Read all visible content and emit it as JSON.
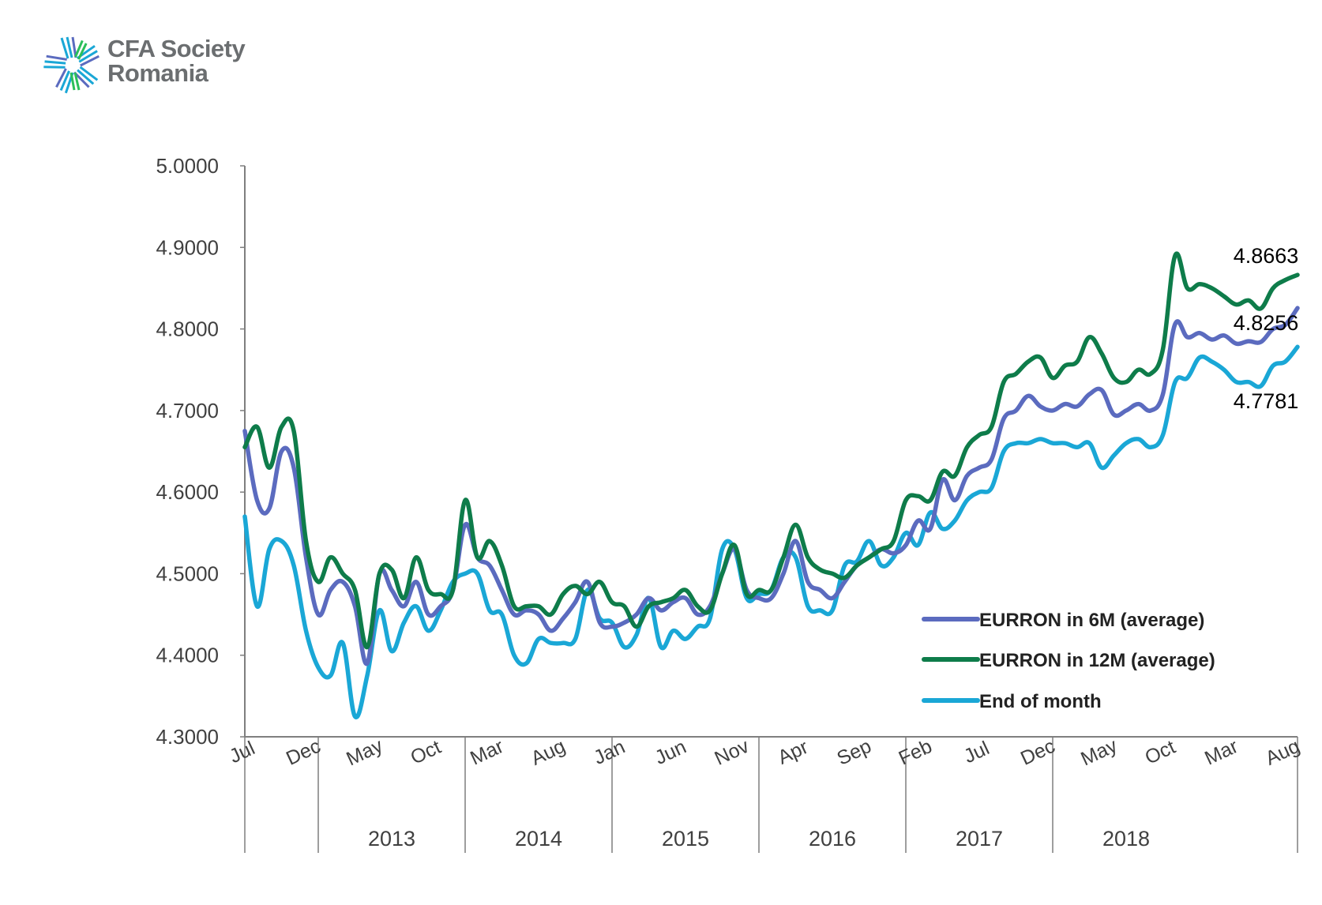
{
  "logo": {
    "line1": "CFA Society",
    "line2": "Romania"
  },
  "colors": {
    "6m": "#5b6bbf",
    "12m": "#0e7c4a",
    "eom": "#1aa7d6",
    "axis": "#7f7f7f",
    "text": "#404040"
  },
  "chart_data": {
    "type": "line",
    "ylim": [
      4.3,
      5.0
    ],
    "yticks": [
      "4.3000",
      "4.4000",
      "4.5000",
      "4.6000",
      "4.7000",
      "4.8000",
      "4.9000",
      "5.0000"
    ],
    "month_labels": [
      "Jul",
      "Dec",
      "May",
      "Oct",
      "Mar",
      "Aug",
      "Jan",
      "Jun",
      "Nov",
      "Apr",
      "Sep",
      "Feb",
      "Jul",
      "Dec",
      "May",
      "Oct",
      "Mar",
      "Aug"
    ],
    "years": [
      {
        "label": "2013",
        "start": 6,
        "end": 18
      },
      {
        "label": "2014",
        "start": 18,
        "end": 30
      },
      {
        "label": "2015",
        "start": 30,
        "end": 42
      },
      {
        "label": "2016",
        "start": 42,
        "end": 54
      },
      {
        "label": "2017",
        "start": 54,
        "end": 66
      },
      {
        "label": "2018",
        "start": 66,
        "end": 78
      }
    ],
    "end_labels": [
      "4.8663",
      "4.8256",
      "4.7781"
    ],
    "series": [
      {
        "key": "6m",
        "name": "EURRON in 6M (average)",
        "color": "#5b6bbf",
        "values": [
          4.675,
          4.59,
          4.58,
          4.65,
          4.63,
          4.52,
          4.45,
          4.48,
          4.49,
          4.46,
          4.39,
          4.5,
          4.48,
          4.46,
          4.49,
          4.45,
          4.46,
          4.48,
          4.56,
          4.52,
          4.51,
          4.48,
          4.45,
          4.455,
          4.45,
          4.43,
          4.445,
          4.465,
          4.49,
          4.44,
          4.435,
          4.44,
          4.45,
          4.47,
          4.455,
          4.465,
          4.47,
          4.45,
          4.46,
          4.5,
          4.53,
          4.48,
          4.47,
          4.47,
          4.5,
          4.54,
          4.49,
          4.48,
          4.47,
          4.49,
          4.51,
          4.52,
          4.53,
          4.525,
          4.535,
          4.565,
          4.555,
          4.615,
          4.59,
          4.62,
          4.63,
          4.64,
          4.69,
          4.7,
          4.718,
          4.705,
          4.7,
          4.708,
          4.705,
          4.72,
          4.725,
          4.695,
          4.7,
          4.708,
          4.7,
          4.72,
          4.806,
          4.79,
          4.795,
          4.787,
          4.792,
          4.782,
          4.785,
          4.784,
          4.8,
          4.805,
          4.8256
        ]
      },
      {
        "key": "12m",
        "name": "EURRON in 12M (average)",
        "color": "#0e7c4a",
        "values": [
          4.655,
          4.68,
          4.63,
          4.68,
          4.675,
          4.54,
          4.49,
          4.52,
          4.5,
          4.48,
          4.41,
          4.5,
          4.505,
          4.47,
          4.52,
          4.48,
          4.475,
          4.48,
          4.59,
          4.52,
          4.54,
          4.51,
          4.46,
          4.46,
          4.46,
          4.45,
          4.475,
          4.485,
          4.475,
          4.49,
          4.465,
          4.46,
          4.435,
          4.46,
          4.465,
          4.47,
          4.48,
          4.46,
          4.455,
          4.5,
          4.535,
          4.475,
          4.48,
          4.48,
          4.52,
          4.56,
          4.52,
          4.505,
          4.5,
          4.495,
          4.51,
          4.52,
          4.53,
          4.54,
          4.59,
          4.595,
          4.59,
          4.625,
          4.62,
          4.655,
          4.67,
          4.68,
          4.735,
          4.745,
          4.76,
          4.765,
          4.74,
          4.755,
          4.76,
          4.79,
          4.77,
          4.74,
          4.735,
          4.75,
          4.745,
          4.775,
          4.89,
          4.85,
          4.855,
          4.85,
          4.84,
          4.83,
          4.835,
          4.825,
          4.85,
          4.86,
          4.8663
        ]
      },
      {
        "key": "eom",
        "name": "End of month",
        "color": "#1aa7d6",
        "values": [
          4.57,
          4.46,
          4.53,
          4.54,
          4.51,
          4.43,
          4.385,
          4.375,
          4.415,
          4.325,
          4.375,
          4.455,
          4.405,
          4.44,
          4.46,
          4.43,
          4.455,
          4.49,
          4.5,
          4.5,
          4.455,
          4.45,
          4.4,
          4.39,
          4.42,
          4.415,
          4.415,
          4.42,
          4.48,
          4.445,
          4.44,
          4.41,
          4.425,
          4.47,
          4.41,
          4.43,
          4.42,
          4.435,
          4.445,
          4.53,
          4.53,
          4.47,
          4.475,
          4.48,
          4.52,
          4.52,
          4.46,
          4.455,
          4.455,
          4.51,
          4.515,
          4.54,
          4.51,
          4.52,
          4.55,
          4.535,
          4.575,
          4.555,
          4.565,
          4.59,
          4.6,
          4.605,
          4.65,
          4.66,
          4.66,
          4.665,
          4.66,
          4.66,
          4.655,
          4.66,
          4.63,
          4.645,
          4.66,
          4.665,
          4.655,
          4.67,
          4.735,
          4.74,
          4.765,
          4.76,
          4.75,
          4.735,
          4.735,
          4.73,
          4.755,
          4.76,
          4.7781
        ]
      }
    ]
  }
}
